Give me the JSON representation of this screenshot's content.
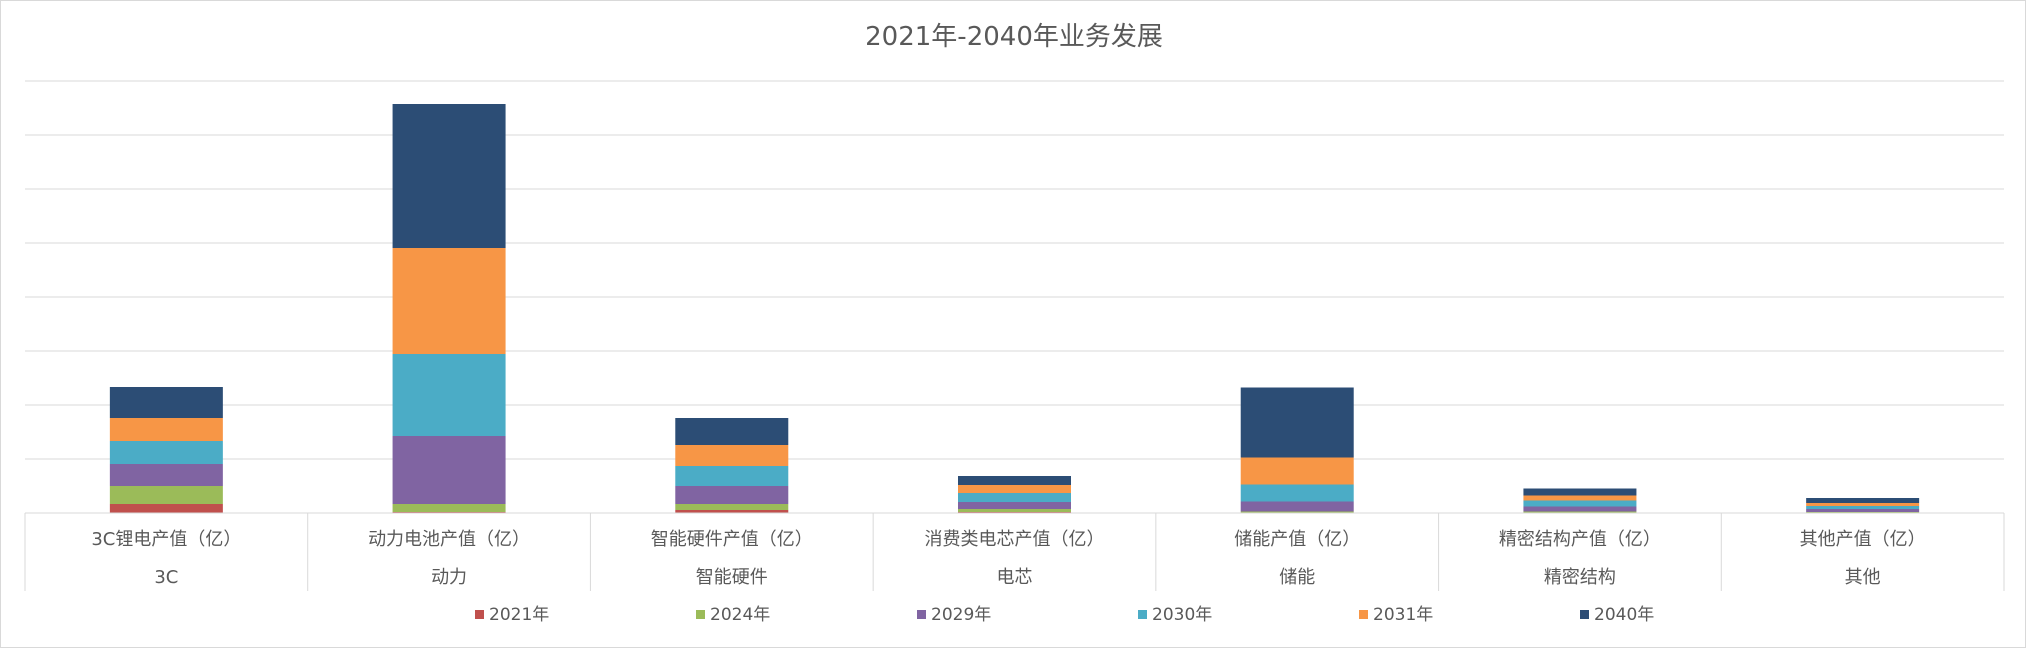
{
  "chart_data": {
    "type": "bar",
    "stacked": true,
    "title": "2021年-2040年业务发展",
    "categories": [
      {
        "line1": "3C锂电产值（亿）",
        "line2": "3C"
      },
      {
        "line1": "动力电池产值（亿）",
        "line2": "动力"
      },
      {
        "line1": "智能硬件产值（亿）",
        "line2": "智能硬件"
      },
      {
        "line1": "消费类电芯产值（亿）",
        "line2": "电芯"
      },
      {
        "line1": "储能产值（亿）",
        "line2": "储能"
      },
      {
        "line1": "精密结构产值（亿）",
        "line2": "精密结构"
      },
      {
        "line1": "其他产值（亿）",
        "line2": "其他"
      }
    ],
    "series": [
      {
        "name": "2021年",
        "color": "#C0504D",
        "values": [
          9,
          1,
          3,
          1,
          0.5,
          0.5,
          0.3
        ]
      },
      {
        "name": "2024年",
        "color": "#9BBB59",
        "values": [
          18,
          8,
          6,
          3,
          1,
          1,
          0.7
        ]
      },
      {
        "name": "2029年",
        "color": "#8064A2",
        "values": [
          22,
          68,
          18,
          7,
          10,
          5,
          3
        ]
      },
      {
        "name": "2030年",
        "color": "#4BACC6",
        "values": [
          23,
          82,
          20,
          9,
          17,
          6,
          3
        ]
      },
      {
        "name": "2031年",
        "color": "#F79646",
        "values": [
          23,
          106,
          21,
          8,
          27,
          5,
          3
        ]
      },
      {
        "name": "2040年",
        "color": "#2C4D75",
        "values": [
          31,
          144,
          27,
          9,
          70,
          7,
          5
        ]
      }
    ],
    "ylim": [
      0,
      432
    ],
    "grid": true,
    "y_axis_labels_shown": false,
    "legend_position": "bottom"
  }
}
